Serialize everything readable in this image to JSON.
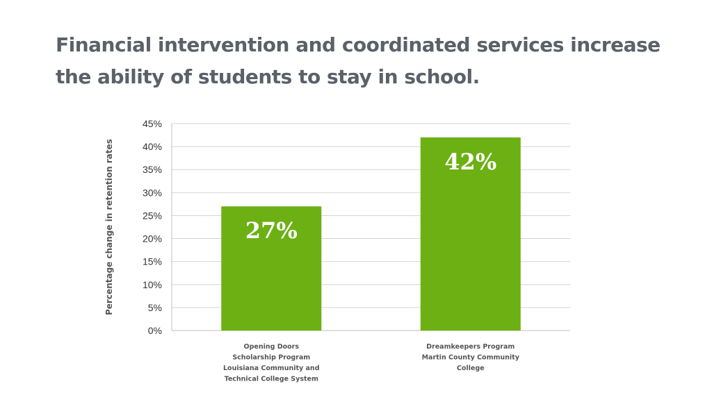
{
  "title": "Financial intervention and coordinated services increase the ability of students to stay in school.",
  "chart_data": {
    "type": "bar",
    "categories": [
      [
        "Opening Doors",
        "Scholarship Program",
        "Louisiana Community and",
        "Technical College System"
      ],
      [
        "Dreamkeepers Program",
        "Martin County Community",
        "College"
      ]
    ],
    "values": [
      27,
      42
    ],
    "data_labels": [
      "27%",
      "42%"
    ],
    "ylabel": "Percentage change in retention rates",
    "ylim": [
      0,
      45
    ],
    "yticks": [
      0,
      5,
      10,
      15,
      20,
      25,
      30,
      35,
      40,
      45
    ],
    "ytick_labels": [
      "0%",
      "5%",
      "10%",
      "15%",
      "20%",
      "25%",
      "30%",
      "35%",
      "40%",
      "45%"
    ],
    "grid": true,
    "legend": "none",
    "colors": {
      "bar": "#6cb014",
      "grid": "#d4d4d4",
      "axis": "#bfbfbf"
    }
  }
}
